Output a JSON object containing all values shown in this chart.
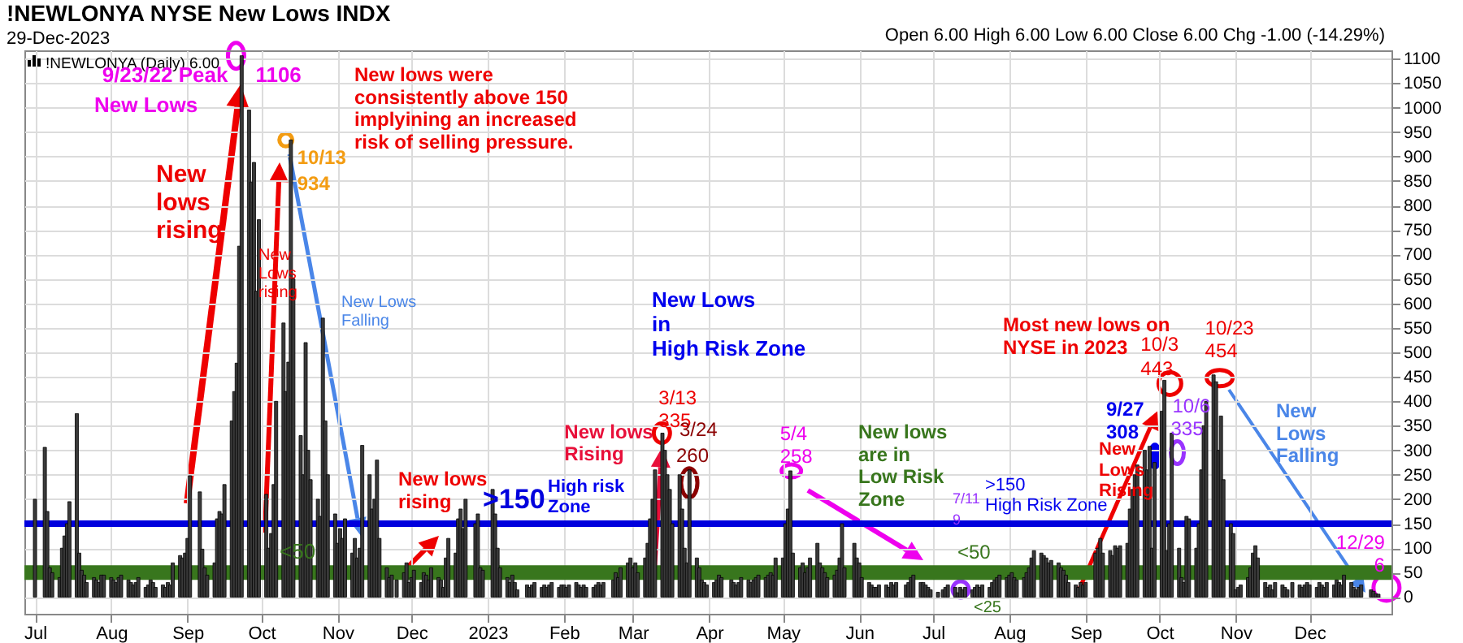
{
  "chart_data": {
    "type": "bar",
    "title": "!NEWLONYA NYSE New Lows INDX",
    "subtitle": "29-Dec-2023",
    "x": [
      "2022-07-01",
      "2022-07-05",
      "2022-07-06",
      "2022-07-07",
      "2022-07-08",
      "2022-07-11",
      "2022-07-12",
      "2022-07-13",
      "2022-07-14",
      "2022-07-15",
      "2022-07-18",
      "2022-07-19",
      "2022-07-20",
      "2022-07-21",
      "2022-07-22",
      "2022-07-25",
      "2022-07-26",
      "2022-07-27",
      "2022-07-28",
      "2022-07-29",
      "2022-08-01",
      "2022-08-02",
      "2022-08-03",
      "2022-08-04",
      "2022-08-05",
      "2022-08-08",
      "2022-08-09",
      "2022-08-10",
      "2022-08-11",
      "2022-08-12",
      "2022-08-15",
      "2022-08-16",
      "2022-08-17",
      "2022-08-18",
      "2022-08-19",
      "2022-08-22",
      "2022-08-23",
      "2022-08-24",
      "2022-08-25",
      "2022-08-26",
      "2022-08-29",
      "2022-08-30",
      "2022-08-31",
      "2022-09-01",
      "2022-09-02",
      "2022-09-06",
      "2022-09-07",
      "2022-09-08",
      "2022-09-09",
      "2022-09-12",
      "2022-09-13",
      "2022-09-14",
      "2022-09-15",
      "2022-09-16",
      "2022-09-19",
      "2022-09-20",
      "2022-09-21",
      "2022-09-22",
      "2022-09-23",
      "2022-09-26",
      "2022-09-27",
      "2022-09-28",
      "2022-09-29",
      "2022-09-30",
      "2022-10-03",
      "2022-10-04",
      "2022-10-05",
      "2022-10-06",
      "2022-10-07",
      "2022-10-10",
      "2022-10-11",
      "2022-10-12",
      "2022-10-13",
      "2022-10-14",
      "2022-10-17",
      "2022-10-18",
      "2022-10-19",
      "2022-10-20",
      "2022-10-21",
      "2022-10-24",
      "2022-10-25",
      "2022-10-26",
      "2022-10-27",
      "2022-10-28",
      "2022-10-31",
      "2022-11-01",
      "2022-11-02",
      "2022-11-03",
      "2022-11-04",
      "2022-11-07",
      "2022-11-08",
      "2022-11-09",
      "2022-11-10",
      "2022-11-11",
      "2022-11-14",
      "2022-11-15",
      "2022-11-16",
      "2022-11-17",
      "2022-11-18",
      "2022-11-21",
      "2022-11-22",
      "2022-11-23",
      "2022-11-25",
      "2022-11-28",
      "2022-11-29",
      "2022-11-30",
      "2022-12-01",
      "2022-12-02",
      "2022-12-05",
      "2022-12-06",
      "2022-12-07",
      "2022-12-08",
      "2022-12-09",
      "2022-12-12",
      "2022-12-13",
      "2022-12-14",
      "2022-12-15",
      "2022-12-16",
      "2022-12-19",
      "2022-12-20",
      "2022-12-21",
      "2022-12-22",
      "2022-12-23",
      "2022-12-27",
      "2022-12-28",
      "2022-12-29",
      "2022-12-30",
      "2023-01-03",
      "2023-01-04",
      "2023-01-05",
      "2023-01-06",
      "2023-01-09",
      "2023-01-10",
      "2023-01-11",
      "2023-01-12",
      "2023-01-13",
      "2023-01-17",
      "2023-01-18",
      "2023-01-19",
      "2023-01-20",
      "2023-01-23",
      "2023-01-24",
      "2023-01-25",
      "2023-01-26",
      "2023-01-27",
      "2023-01-30",
      "2023-01-31",
      "2023-02-01",
      "2023-02-02",
      "2023-02-03",
      "2023-02-06",
      "2023-02-07",
      "2023-02-08",
      "2023-02-09",
      "2023-02-10",
      "2023-02-13",
      "2023-02-14",
      "2023-02-15",
      "2023-02-16",
      "2023-02-17",
      "2023-02-21",
      "2023-02-22",
      "2023-02-23",
      "2023-02-24",
      "2023-02-27",
      "2023-02-28",
      "2023-03-01",
      "2023-03-02",
      "2023-03-03",
      "2023-03-06",
      "2023-03-07",
      "2023-03-08",
      "2023-03-09",
      "2023-03-10",
      "2023-03-13",
      "2023-03-14",
      "2023-03-15",
      "2023-03-16",
      "2023-03-17",
      "2023-03-20",
      "2023-03-21",
      "2023-03-22",
      "2023-03-23",
      "2023-03-24",
      "2023-03-27",
      "2023-03-28",
      "2023-03-29",
      "2023-03-30",
      "2023-03-31",
      "2023-04-03",
      "2023-04-04",
      "2023-04-05",
      "2023-04-06",
      "2023-04-10",
      "2023-04-11",
      "2023-04-12",
      "2023-04-13",
      "2023-04-14",
      "2023-04-17",
      "2023-04-18",
      "2023-04-19",
      "2023-04-20",
      "2023-04-21",
      "2023-04-24",
      "2023-04-25",
      "2023-04-26",
      "2023-04-27",
      "2023-04-28",
      "2023-05-01",
      "2023-05-02",
      "2023-05-03",
      "2023-05-04",
      "2023-05-05",
      "2023-05-08",
      "2023-05-09",
      "2023-05-10",
      "2023-05-11",
      "2023-05-12",
      "2023-05-15",
      "2023-05-16",
      "2023-05-17",
      "2023-05-18",
      "2023-05-19",
      "2023-05-22",
      "2023-05-23",
      "2023-05-24",
      "2023-05-25",
      "2023-05-26",
      "2023-05-30",
      "2023-05-31",
      "2023-06-01",
      "2023-06-02",
      "2023-06-05",
      "2023-06-06",
      "2023-06-07",
      "2023-06-08",
      "2023-06-09",
      "2023-06-12",
      "2023-06-13",
      "2023-06-14",
      "2023-06-15",
      "2023-06-16",
      "2023-06-20",
      "2023-06-21",
      "2023-06-22",
      "2023-06-23",
      "2023-06-26",
      "2023-06-27",
      "2023-06-28",
      "2023-06-29",
      "2023-06-30",
      "2023-07-03",
      "2023-07-05",
      "2023-07-06",
      "2023-07-07",
      "2023-07-10",
      "2023-07-11",
      "2023-07-12",
      "2023-07-13",
      "2023-07-14",
      "2023-07-17",
      "2023-07-18",
      "2023-07-19",
      "2023-07-20",
      "2023-07-21",
      "2023-07-24",
      "2023-07-25",
      "2023-07-26",
      "2023-07-27",
      "2023-07-28",
      "2023-07-31",
      "2023-08-01",
      "2023-08-02",
      "2023-08-03",
      "2023-08-04",
      "2023-08-07",
      "2023-08-08",
      "2023-08-09",
      "2023-08-10",
      "2023-08-11",
      "2023-08-14",
      "2023-08-15",
      "2023-08-16",
      "2023-08-17",
      "2023-08-18",
      "2023-08-21",
      "2023-08-22",
      "2023-08-23",
      "2023-08-24",
      "2023-08-25",
      "2023-08-28",
      "2023-08-29",
      "2023-08-30",
      "2023-08-31",
      "2023-09-01",
      "2023-09-05",
      "2023-09-06",
      "2023-09-07",
      "2023-09-08",
      "2023-09-11",
      "2023-09-12",
      "2023-09-13",
      "2023-09-14",
      "2023-09-15",
      "2023-09-18",
      "2023-09-19",
      "2023-09-20",
      "2023-09-21",
      "2023-09-22",
      "2023-09-25",
      "2023-09-26",
      "2023-09-27",
      "2023-09-28",
      "2023-09-29",
      "2023-10-02",
      "2023-10-03",
      "2023-10-04",
      "2023-10-05",
      "2023-10-06",
      "2023-10-09",
      "2023-10-10",
      "2023-10-11",
      "2023-10-12",
      "2023-10-13",
      "2023-10-16",
      "2023-10-17",
      "2023-10-18",
      "2023-10-19",
      "2023-10-20",
      "2023-10-23",
      "2023-10-24",
      "2023-10-25",
      "2023-10-26",
      "2023-10-27",
      "2023-10-30",
      "2023-10-31",
      "2023-11-01",
      "2023-11-02",
      "2023-11-03",
      "2023-11-06",
      "2023-11-07",
      "2023-11-08",
      "2023-11-09",
      "2023-11-10",
      "2023-11-13",
      "2023-11-14",
      "2023-11-15",
      "2023-11-16",
      "2023-11-17",
      "2023-11-20",
      "2023-11-21",
      "2023-11-22",
      "2023-11-24",
      "2023-11-27",
      "2023-11-28",
      "2023-11-29",
      "2023-11-30",
      "2023-12-01",
      "2023-12-04",
      "2023-12-05",
      "2023-12-06",
      "2023-12-07",
      "2023-12-08",
      "2023-12-11",
      "2023-12-12",
      "2023-12-13",
      "2023-12-14",
      "2023-12-15",
      "2023-12-18",
      "2023-12-19",
      "2023-12-20",
      "2023-12-21",
      "2023-12-22",
      "2023-12-26",
      "2023-12-27",
      "2023-12-28",
      "2023-12-29"
    ],
    "values": [
      200,
      306,
      175,
      60,
      50,
      40,
      100,
      125,
      150,
      195,
      375,
      90,
      55,
      45,
      30,
      40,
      35,
      30,
      45,
      45,
      40,
      35,
      30,
      40,
      45,
      35,
      30,
      25,
      30,
      40,
      20,
      25,
      35,
      30,
      20,
      25,
      20,
      30,
      25,
      70,
      85,
      80,
      90,
      120,
      248,
      215,
      98,
      60,
      45,
      70,
      160,
      175,
      170,
      230,
      360,
      420,
      478,
      717,
      1106,
      995,
      848,
      888,
      625,
      771,
      210,
      100,
      130,
      230,
      400,
      560,
      420,
      480,
      934,
      650,
      330,
      250,
      520,
      300,
      240,
      200,
      165,
      570,
      360,
      250,
      170,
      110,
      140,
      120,
      160,
      90,
      120,
      80,
      100,
      310,
      250,
      180,
      200,
      280,
      120,
      60,
      40,
      45,
      35,
      50,
      70,
      30,
      40,
      55,
      30,
      50,
      45,
      35,
      60,
      40,
      35,
      20,
      80,
      120,
      90,
      160,
      180,
      140,
      200,
      150,
      170,
      60,
      55,
      220,
      170,
      100,
      60,
      40,
      30,
      45,
      30,
      15,
      25,
      20,
      25,
      30,
      20,
      25,
      20,
      25,
      30,
      20,
      25,
      25,
      20,
      25,
      30,
      25,
      20,
      25,
      20,
      20,
      25,
      30,
      25,
      30,
      35,
      50,
      40,
      60,
      70,
      80,
      60,
      70,
      50,
      80,
      110,
      160,
      200,
      260,
      335,
      300,
      250,
      220,
      150,
      250,
      180,
      100,
      70,
      260,
      80,
      60,
      35,
      30,
      25,
      30,
      35,
      45,
      40,
      35,
      30,
      25,
      30,
      40,
      35,
      30,
      35,
      40,
      45,
      40,
      45,
      50,
      45,
      80,
      80,
      150,
      180,
      258,
      90,
      60,
      70,
      50,
      60,
      80,
      110,
      70,
      60,
      50,
      40,
      45,
      55,
      80,
      150,
      60,
      110,
      80,
      70,
      40,
      30,
      25,
      20,
      20,
      25,
      25,
      20,
      30,
      25,
      30,
      25,
      30,
      40,
      45,
      30,
      30,
      25,
      20,
      15,
      10,
      15,
      20,
      25,
      20,
      9,
      20,
      15,
      20,
      15,
      20,
      25,
      20,
      25,
      20,
      30,
      35,
      40,
      45,
      40,
      45,
      50,
      40,
      35,
      40,
      50,
      60,
      80,
      95,
      90,
      85,
      80,
      70,
      75,
      70,
      60,
      55,
      45,
      30,
      25,
      20,
      30,
      25,
      30,
      90,
      100,
      120,
      90,
      95,
      85,
      105,
      100,
      105,
      110,
      180,
      220,
      250,
      270,
      300,
      260,
      308,
      100,
      275,
      380,
      443,
      95,
      150,
      335,
      100,
      40,
      30,
      165,
      160,
      100,
      150,
      260,
      350,
      400,
      454,
      440,
      300,
      370,
      240,
      150,
      130,
      15,
      20,
      25,
      40,
      60,
      90,
      105,
      80,
      30,
      20,
      25,
      15,
      30,
      25,
      20,
      15,
      30,
      25,
      20,
      25,
      30,
      25,
      20,
      30,
      25,
      20,
      30,
      25,
      35,
      30,
      25,
      45,
      30,
      20,
      15,
      20,
      25,
      15,
      12,
      7,
      6
    ],
    "color": "#3a3a3a",
    "xlim": [
      "2022-06-30",
      "2023-12-31"
    ],
    "xticks": [
      {
        "value": "2022-07-01",
        "label": "Jul"
      },
      {
        "value": "2022-08-01",
        "label": "Aug"
      },
      {
        "value": "2022-09-01",
        "label": "Sep"
      },
      {
        "value": "2022-10-01",
        "label": "Oct"
      },
      {
        "value": "2022-11-01",
        "label": "Nov"
      },
      {
        "value": "2022-12-01",
        "label": "Dec"
      },
      {
        "value": "2023-01-01",
        "label": "2023"
      },
      {
        "value": "2023-02-01",
        "label": "Feb"
      },
      {
        "value": "2023-03-01",
        "label": "Mar"
      },
      {
        "value": "2023-04-01",
        "label": "Apr"
      },
      {
        "value": "2023-05-01",
        "label": "May"
      },
      {
        "value": "2023-06-01",
        "label": "Jun"
      },
      {
        "value": "2023-07-01",
        "label": "Jul"
      },
      {
        "value": "2023-08-01",
        "label": "Aug"
      },
      {
        "value": "2023-09-01",
        "label": "Sep"
      },
      {
        "value": "2023-10-01",
        "label": "Oct"
      },
      {
        "value": "2023-11-01",
        "label": "Nov"
      },
      {
        "value": "2023-12-01",
        "label": "Dec"
      }
    ],
    "ylim": [
      -34,
      1117
    ],
    "yticks": [
      0,
      50,
      100,
      150,
      200,
      250,
      300,
      350,
      400,
      450,
      500,
      550,
      600,
      650,
      700,
      750,
      800,
      850,
      900,
      950,
      1000,
      1050,
      1100
    ],
    "grid": true,
    "ref_lines": [
      {
        "axis": "y",
        "value": 150,
        "label": ">150",
        "color": "#0000dd"
      },
      {
        "axis": "y",
        "value": 50,
        "label": "<50",
        "color": "#38761d"
      }
    ],
    "annotations": [
      "!NEWLONYA (Daily) 6.00",
      "Open 6.00 High 6.00 Low 6.00 Close 6.00 Chg -1.00 (-14.29%)",
      {
        "text": "9/23/22 Peak",
        "x": "2022-09-23",
        "y": 1106
      },
      {
        "text": "1106",
        "x": "2022-09-23",
        "y": 1106
      },
      "New Lows",
      "New lows rising",
      "New Lows rising",
      {
        "text": "10/13",
        "x": "2022-10-13",
        "y": 934
      },
      {
        "text": "934",
        "x": "2022-10-13",
        "y": 934
      },
      "New lows were consistently above 150 implyining an increased risk of selling pressure.",
      "New Lows Falling",
      "New lows rising",
      "High risk Zone",
      "New Lows in High Risk Zone",
      {
        "text": "New lows Rising",
        "x": "2023-03-13",
        "y": 305
      },
      {
        "text": "3/13",
        "x": "2023-03-13",
        "y": 335
      },
      {
        "text": "335",
        "x": "2023-03-13",
        "y": 335
      },
      {
        "text": "3/24",
        "x": "2023-03-24",
        "y": 260
      },
      {
        "text": "260",
        "x": "2023-03-24",
        "y": 260
      },
      {
        "text": "5/4",
        "x": "2023-05-04",
        "y": 258
      },
      {
        "text": "258",
        "x": "2023-05-04",
        "y": 258
      },
      "New lows are in Low Risk Zone",
      "7/11",
      "9",
      "<50",
      "<25",
      ">150 High Risk Zone",
      {
        "text": "New Lows Rising",
        "x": "2023-09-28",
        "y": 380
      },
      "Most new lows on NYSE in 2023",
      {
        "text": "10/3",
        "x": "2023-10-03",
        "y": 443
      },
      {
        "text": "443",
        "x": "2023-10-03",
        "y": 443
      },
      {
        "text": "9/27",
        "x": "2023-09-27",
        "y": 308
      },
      {
        "text": "308",
        "x": "2023-09-27",
        "y": 308
      },
      {
        "text": "10/6",
        "x": "2023-10-06",
        "y": 335
      },
      {
        "text": "335",
        "x": "2023-10-06",
        "y": 335
      },
      {
        "text": "10/23",
        "x": "2023-10-23",
        "y": 454
      },
      {
        "text": "454",
        "x": "2023-10-23",
        "y": 454
      },
      "New Lows Falling",
      {
        "text": "12/29",
        "x": "2023-12-29",
        "y": 6
      },
      {
        "text": "6",
        "x": "2023-12-29",
        "y": 6
      }
    ]
  }
}
